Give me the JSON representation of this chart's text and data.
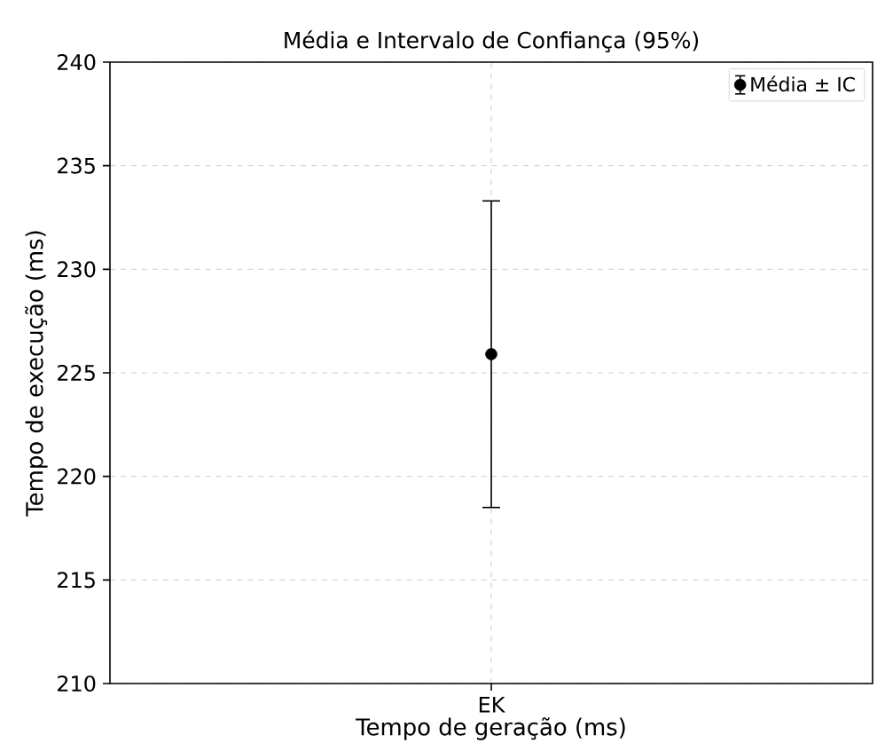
{
  "chart_data": {
    "type": "scatter",
    "title": "Média e Intervalo de Confiança (95%)",
    "xlabel": "Tempo de geração (ms)",
    "ylabel": "Tempo de execução (ms)",
    "categories": [
      "EK"
    ],
    "series": [
      {
        "name": "Média ± IC",
        "color": "#000000",
        "values": [
          225.9
        ],
        "errors": [
          7.4
        ]
      }
    ],
    "ylim": [
      210,
      240
    ],
    "yticks": [
      210,
      215,
      220,
      225,
      230,
      235,
      240
    ],
    "grid": true,
    "legend": "top right",
    "marker": "circle"
  }
}
